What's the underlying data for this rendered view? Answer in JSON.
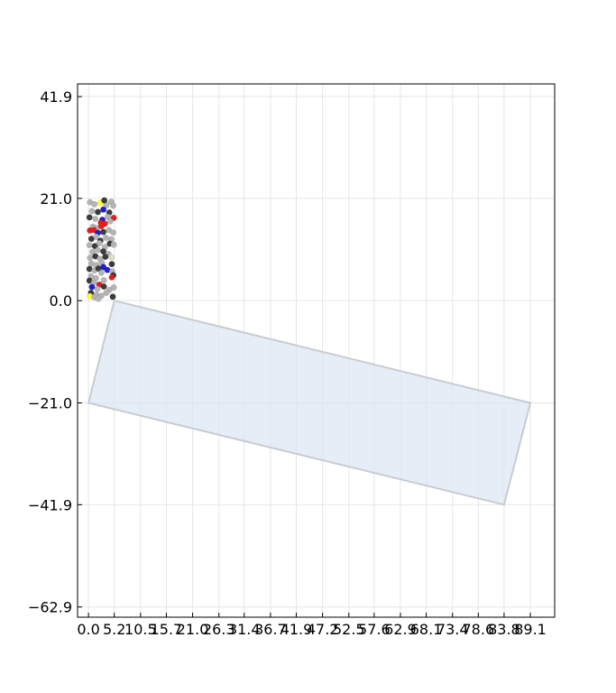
{
  "chart_data": {
    "type": "scatter",
    "title": "",
    "xlabel": "",
    "ylabel": "",
    "xlim": [
      -2.2,
      94.0
    ],
    "ylim": [
      -65.0,
      44.5
    ],
    "grid": true,
    "xticks": [
      "0.0",
      "5.2",
      "10.5",
      "15.7",
      "21.0",
      "26.3",
      "31.4",
      "36.7",
      "41.9",
      "47.2",
      "52.5",
      "57.6",
      "62.9",
      "68.1",
      "73.4",
      "78.6",
      "83.8",
      "89.1"
    ],
    "xtick_values": [
      0.0,
      5.2,
      10.5,
      15.7,
      21.0,
      26.3,
      31.4,
      36.7,
      41.9,
      47.2,
      52.5,
      57.6,
      62.9,
      68.1,
      73.4,
      78.6,
      83.8,
      89.1
    ],
    "yticks": [
      "41.9",
      "21.0",
      "0.0",
      "−21.0",
      "−41.9",
      "−62.9"
    ],
    "ytick_values": [
      41.9,
      21.0,
      0.0,
      -21.0,
      -41.9,
      -62.9
    ],
    "region": {
      "fill": "#dae6f3",
      "stroke": "#c8ccd2",
      "vertices": [
        [
          5.2,
          0.0
        ],
        [
          89.1,
          -21.0
        ],
        [
          83.8,
          -41.9
        ],
        [
          0.0,
          -21.0
        ]
      ]
    },
    "colors": {
      "gray": "#b4b4b4",
      "dark": "#3c3c3c",
      "blue": "#1f1fd0",
      "red": "#e01f1f",
      "yellow": "#ffff1f",
      "pale": "#dcdcc8"
    },
    "points": [
      {
        "x": 0.3,
        "y": 20.2,
        "c": "gray"
      },
      {
        "x": 1.2,
        "y": 19.8,
        "c": "gray"
      },
      {
        "x": 2.4,
        "y": 20.1,
        "c": "yellow"
      },
      {
        "x": 3.6,
        "y": 19.6,
        "c": "gray"
      },
      {
        "x": 4.6,
        "y": 20.3,
        "c": "gray"
      },
      {
        "x": 3.2,
        "y": 20.6,
        "c": "dark"
      },
      {
        "x": 5.0,
        "y": 19.5,
        "c": "gray"
      },
      {
        "x": 0.7,
        "y": 18.4,
        "c": "gray"
      },
      {
        "x": 1.9,
        "y": 18.2,
        "c": "dark"
      },
      {
        "x": 3.0,
        "y": 18.7,
        "c": "blue"
      },
      {
        "x": 4.2,
        "y": 18.1,
        "c": "dark"
      },
      {
        "x": 0.2,
        "y": 17.1,
        "c": "dark"
      },
      {
        "x": 1.4,
        "y": 16.8,
        "c": "gray"
      },
      {
        "x": 2.8,
        "y": 16.6,
        "c": "blue"
      },
      {
        "x": 3.9,
        "y": 17.2,
        "c": "gray"
      },
      {
        "x": 5.1,
        "y": 17.0,
        "c": "red"
      },
      {
        "x": 2.5,
        "y": 16.0,
        "c": "red"
      },
      {
        "x": 3.3,
        "y": 15.8,
        "c": "red"
      },
      {
        "x": 4.4,
        "y": 16.3,
        "c": "gray"
      },
      {
        "x": 0.9,
        "y": 15.2,
        "c": "gray"
      },
      {
        "x": 1.8,
        "y": 14.9,
        "c": "gray"
      },
      {
        "x": 2.6,
        "y": 15.3,
        "c": "red"
      },
      {
        "x": 0.3,
        "y": 14.4,
        "c": "red"
      },
      {
        "x": 1.1,
        "y": 14.5,
        "c": "red"
      },
      {
        "x": 1.9,
        "y": 13.9,
        "c": "blue"
      },
      {
        "x": 3.0,
        "y": 14.1,
        "c": "dark"
      },
      {
        "x": 4.1,
        "y": 14.5,
        "c": "gray"
      },
      {
        "x": 5.0,
        "y": 14.0,
        "c": "gray"
      },
      {
        "x": 0.6,
        "y": 12.7,
        "c": "dark"
      },
      {
        "x": 1.6,
        "y": 13.1,
        "c": "gray"
      },
      {
        "x": 2.4,
        "y": 12.3,
        "c": "dark"
      },
      {
        "x": 3.5,
        "y": 12.9,
        "c": "gray"
      },
      {
        "x": 4.6,
        "y": 12.6,
        "c": "gray"
      },
      {
        "x": 0.2,
        "y": 11.4,
        "c": "gray"
      },
      {
        "x": 1.3,
        "y": 11.2,
        "c": "dark"
      },
      {
        "x": 2.2,
        "y": 11.8,
        "c": "gray"
      },
      {
        "x": 3.3,
        "y": 11.0,
        "c": "gray"
      },
      {
        "x": 4.3,
        "y": 11.7,
        "c": "dark"
      },
      {
        "x": 5.1,
        "y": 11.5,
        "c": "gray"
      },
      {
        "x": 0.8,
        "y": 10.0,
        "c": "gray"
      },
      {
        "x": 1.9,
        "y": 10.4,
        "c": "gray"
      },
      {
        "x": 3.0,
        "y": 10.1,
        "c": "dark"
      },
      {
        "x": 4.0,
        "y": 9.6,
        "c": "gray"
      },
      {
        "x": 0.3,
        "y": 8.8,
        "c": "gray"
      },
      {
        "x": 1.4,
        "y": 9.1,
        "c": "dark"
      },
      {
        "x": 2.3,
        "y": 8.6,
        "c": "gray"
      },
      {
        "x": 3.4,
        "y": 9.0,
        "c": "dark"
      },
      {
        "x": 4.6,
        "y": 8.9,
        "c": "pale"
      },
      {
        "x": 0.6,
        "y": 7.6,
        "c": "gray"
      },
      {
        "x": 1.6,
        "y": 7.3,
        "c": "gray"
      },
      {
        "x": 2.7,
        "y": 7.8,
        "c": "gray"
      },
      {
        "x": 4.7,
        "y": 7.5,
        "c": "dark"
      },
      {
        "x": 0.2,
        "y": 6.5,
        "c": "dark"
      },
      {
        "x": 1.2,
        "y": 6.2,
        "c": "gray"
      },
      {
        "x": 2.0,
        "y": 6.6,
        "c": "dark"
      },
      {
        "x": 3.0,
        "y": 6.9,
        "c": "blue"
      },
      {
        "x": 3.8,
        "y": 6.3,
        "c": "blue"
      },
      {
        "x": 4.8,
        "y": 6.0,
        "c": "gray"
      },
      {
        "x": 2.6,
        "y": 5.7,
        "c": "gray"
      },
      {
        "x": 5.0,
        "y": 5.2,
        "c": "dark"
      },
      {
        "x": 0.5,
        "y": 5.0,
        "c": "gray"
      },
      {
        "x": 1.5,
        "y": 4.6,
        "c": "gray"
      },
      {
        "x": 4.7,
        "y": 4.8,
        "c": "red"
      },
      {
        "x": 3.1,
        "y": 4.2,
        "c": "gray"
      },
      {
        "x": 0.2,
        "y": 4.1,
        "c": "dark"
      },
      {
        "x": 1.1,
        "y": 3.7,
        "c": "gray"
      },
      {
        "x": 2.2,
        "y": 3.3,
        "c": "red"
      },
      {
        "x": 0.7,
        "y": 2.8,
        "c": "blue"
      },
      {
        "x": 1.8,
        "y": 2.4,
        "c": "gray"
      },
      {
        "x": 3.1,
        "y": 2.9,
        "c": "dark"
      },
      {
        "x": 4.2,
        "y": 2.2,
        "c": "gray"
      },
      {
        "x": 5.1,
        "y": 2.7,
        "c": "gray"
      },
      {
        "x": 0.5,
        "y": 1.6,
        "c": "dark"
      },
      {
        "x": 1.6,
        "y": 1.2,
        "c": "gray"
      },
      {
        "x": 2.6,
        "y": 1.0,
        "c": "gray"
      },
      {
        "x": 3.6,
        "y": 1.6,
        "c": "gray"
      },
      {
        "x": 0.3,
        "y": 0.9,
        "c": "yellow"
      },
      {
        "x": 1.2,
        "y": 0.7,
        "c": "gray"
      },
      {
        "x": 4.9,
        "y": 0.8,
        "c": "dark"
      },
      {
        "x": 2.0,
        "y": 0.4,
        "c": "gray"
      }
    ]
  }
}
